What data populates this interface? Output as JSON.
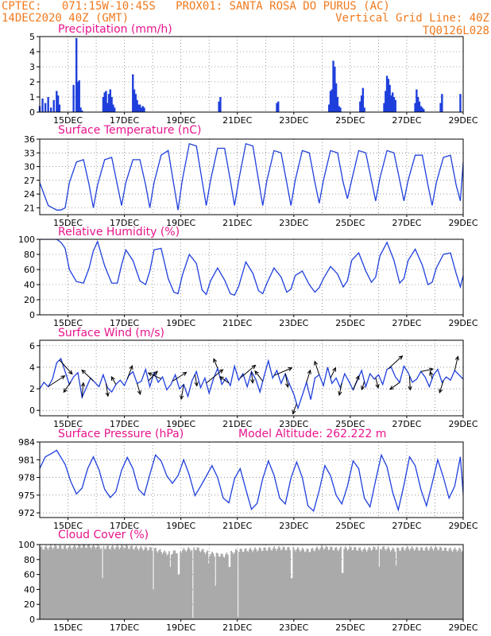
{
  "header": {
    "line1_left": "CPTEC:   071:15W-10:45S   PROX01: SANTA ROSA DO PURUS (AC)",
    "line2_left": "14DEC2020 40Z (GMT)",
    "line2_right": "Vertical Grid Line: 40Z",
    "line3_right": "TQ0126L028"
  },
  "colors": {
    "header": "#f07a1e",
    "title": "#e8148c",
    "series": "#1f3fdc",
    "cloud": "#aaaaaa",
    "arrow": "#000000",
    "grid": "#555555"
  },
  "chart_data": [
    {
      "type": "bar",
      "title": "Precipitation (mm/h)",
      "x_range": [
        14,
        29
      ],
      "x_ticks": [
        "15DEC",
        "17DEC",
        "19DEC",
        "21DEC",
        "23DEC",
        "25DEC",
        "27DEC",
        "29DEC"
      ],
      "ylim": [
        0,
        5
      ],
      "y_ticks": [
        "0",
        "1",
        "2",
        "3",
        "4",
        "5"
      ],
      "x": [
        14.0,
        14.1,
        14.2,
        14.3,
        14.4,
        14.5,
        14.6,
        14.65,
        14.7,
        15.2,
        15.3,
        15.35,
        15.4,
        15.45,
        15.5,
        16.25,
        16.3,
        16.35,
        16.4,
        16.45,
        16.5,
        16.55,
        16.6,
        16.65,
        17.3,
        17.35,
        17.4,
        17.45,
        17.5,
        17.55,
        17.6,
        17.65,
        17.7,
        20.35,
        20.4,
        22.4,
        22.45,
        24.25,
        24.3,
        24.35,
        24.4,
        24.45,
        24.5,
        24.55,
        24.6,
        24.65,
        25.35,
        25.4,
        25.45,
        25.5,
        26.2,
        26.25,
        26.3,
        26.35,
        26.4,
        26.45,
        26.5,
        26.55,
        26.6,
        27.3,
        27.35,
        27.4,
        27.45,
        27.5,
        27.55,
        27.6,
        28.2,
        28.25,
        28.9
      ],
      "values": [
        0.4,
        0.9,
        0.6,
        1.0,
        0.3,
        0.8,
        1.4,
        1.1,
        0.5,
        1.8,
        4.9,
        2.0,
        2.1,
        0.3,
        0.1,
        1.0,
        1.3,
        1.4,
        0.6,
        1.2,
        1.5,
        1.0,
        0.5,
        0.3,
        2.5,
        1.5,
        1.2,
        0.8,
        0.5,
        0.5,
        0.3,
        0.4,
        0.3,
        0.7,
        1.0,
        0.6,
        0.7,
        0.5,
        1.4,
        1.5,
        3.4,
        3.0,
        1.9,
        1.0,
        0.4,
        0.3,
        0.7,
        1.1,
        1.6,
        0.3,
        0.6,
        1.4,
        2.4,
        2.2,
        1.8,
        1.1,
        1.3,
        1.0,
        0.8,
        0.6,
        1.5,
        1.0,
        0.7,
        0.4,
        0.3,
        0.2,
        0.6,
        1.2,
        1.2
      ]
    },
    {
      "type": "line",
      "title": "Surface Temperature (nC)",
      "x_range": [
        14,
        29
      ],
      "x_ticks": [
        "15DEC",
        "17DEC",
        "19DEC",
        "21DEC",
        "23DEC",
        "25DEC",
        "27DEC",
        "29DEC"
      ],
      "ylim": [
        19.5,
        36
      ],
      "y_ticks": [
        "21",
        "24",
        "27",
        "30",
        "33",
        "36"
      ],
      "x": [
        14.0,
        14.3,
        14.6,
        14.75,
        14.9,
        15.05,
        15.3,
        15.55,
        15.75,
        15.9,
        16.05,
        16.3,
        16.55,
        16.75,
        16.9,
        17.05,
        17.3,
        17.55,
        17.75,
        17.9,
        18.05,
        18.3,
        18.55,
        18.75,
        18.9,
        19.05,
        19.3,
        19.55,
        19.75,
        19.9,
        20.05,
        20.3,
        20.55,
        20.75,
        20.9,
        21.05,
        21.3,
        21.55,
        21.75,
        21.9,
        22.05,
        22.3,
        22.55,
        22.75,
        22.9,
        23.05,
        23.3,
        23.55,
        23.75,
        23.9,
        24.05,
        24.3,
        24.55,
        24.75,
        24.9,
        25.05,
        25.3,
        25.55,
        25.75,
        25.9,
        26.05,
        26.3,
        26.55,
        26.75,
        26.9,
        27.05,
        27.3,
        27.55,
        27.75,
        27.9,
        28.05,
        28.3,
        28.55,
        28.75,
        28.9,
        29.0
      ],
      "values": [
        26.5,
        21.5,
        20.5,
        20.5,
        21.0,
        26.5,
        31.0,
        31.5,
        26.0,
        21.0,
        26.0,
        31.5,
        32.0,
        26.0,
        21.5,
        26.5,
        31.5,
        31.5,
        26.0,
        21.0,
        26.5,
        32.5,
        33.5,
        26.0,
        20.5,
        27.0,
        35.0,
        34.5,
        27.0,
        21.5,
        27.0,
        34.0,
        34.0,
        27.0,
        21.5,
        27.0,
        35.0,
        34.5,
        27.0,
        21.5,
        27.0,
        33.5,
        33.0,
        26.5,
        21.5,
        27.0,
        33.5,
        33.0,
        26.5,
        22.0,
        27.0,
        33.5,
        33.0,
        26.5,
        23.0,
        27.0,
        33.5,
        33.0,
        27.0,
        22.5,
        27.5,
        33.5,
        33.0,
        27.0,
        22.5,
        27.0,
        32.5,
        32.5,
        26.0,
        21.5,
        26.5,
        32.0,
        32.5,
        26.0,
        22.5,
        31.0
      ]
    },
    {
      "type": "line",
      "title": "Relative Humidity (%)",
      "x_range": [
        14,
        29
      ],
      "x_ticks": [
        "15DEC",
        "17DEC",
        "19DEC",
        "21DEC",
        "23DEC",
        "25DEC",
        "27DEC",
        "29DEC"
      ],
      "ylim": [
        0,
        100
      ],
      "y_ticks": [
        "0",
        "20",
        "40",
        "60",
        "80",
        "100"
      ],
      "x": [
        14.0,
        14.3,
        14.6,
        14.75,
        14.9,
        15.05,
        15.3,
        15.55,
        15.75,
        15.9,
        16.05,
        16.3,
        16.55,
        16.75,
        16.9,
        17.05,
        17.3,
        17.55,
        17.75,
        17.9,
        18.05,
        18.3,
        18.55,
        18.75,
        18.9,
        19.05,
        19.3,
        19.55,
        19.75,
        19.9,
        20.05,
        20.3,
        20.55,
        20.75,
        20.9,
        21.05,
        21.3,
        21.55,
        21.75,
        21.9,
        22.05,
        22.3,
        22.55,
        22.75,
        22.9,
        23.05,
        23.3,
        23.55,
        23.75,
        23.9,
        24.05,
        24.3,
        24.55,
        24.75,
        24.9,
        25.05,
        25.3,
        25.55,
        25.75,
        25.9,
        26.05,
        26.3,
        26.55,
        26.75,
        26.9,
        27.05,
        27.3,
        27.55,
        27.75,
        27.9,
        28.05,
        28.3,
        28.55,
        28.75,
        28.9,
        29.0
      ],
      "values": [
        100,
        100,
        100,
        96,
        88,
        60,
        44,
        42,
        62,
        85,
        97,
        65,
        42,
        42,
        66,
        86,
        72,
        45,
        40,
        58,
        86,
        88,
        48,
        30,
        28,
        52,
        80,
        68,
        33,
        27,
        45,
        62,
        46,
        28,
        26,
        38,
        70,
        55,
        32,
        28,
        42,
        62,
        50,
        30,
        34,
        52,
        58,
        40,
        30,
        36,
        48,
        64,
        54,
        37,
        45,
        72,
        82,
        58,
        43,
        50,
        78,
        96,
        72,
        42,
        48,
        72,
        87,
        66,
        40,
        43,
        62,
        80,
        82,
        55,
        37,
        52
      ]
    },
    {
      "type": "line",
      "title": "Surface Wind (m/s)",
      "x_range": [
        14,
        29
      ],
      "x_ticks": [
        "15DEC",
        "17DEC",
        "19DEC",
        "21DEC",
        "23DEC",
        "25DEC",
        "27DEC",
        "29DEC"
      ],
      "ylim": [
        -0.5,
        6.5
      ],
      "y_ticks": [
        "0",
        "2",
        "4",
        "6"
      ],
      "x": [
        14.0,
        14.15,
        14.3,
        14.45,
        14.6,
        14.75,
        14.9,
        15.05,
        15.2,
        15.35,
        15.5,
        15.65,
        15.8,
        15.95,
        16.1,
        16.25,
        16.4,
        16.55,
        16.7,
        16.85,
        17.0,
        17.15,
        17.3,
        17.45,
        17.6,
        17.75,
        17.9,
        18.05,
        18.2,
        18.35,
        18.5,
        18.65,
        18.8,
        18.95,
        19.1,
        19.25,
        19.4,
        19.55,
        19.7,
        19.85,
        20.0,
        20.15,
        20.3,
        20.45,
        20.6,
        20.75,
        20.9,
        21.05,
        21.2,
        21.35,
        21.5,
        21.65,
        21.8,
        21.95,
        22.1,
        22.25,
        22.4,
        22.55,
        22.7,
        22.85,
        23.0,
        23.15,
        23.3,
        23.45,
        23.6,
        23.75,
        23.9,
        24.05,
        24.2,
        24.35,
        24.5,
        24.65,
        24.8,
        24.95,
        25.1,
        25.25,
        25.4,
        25.55,
        25.7,
        25.85,
        26.0,
        26.15,
        26.3,
        26.45,
        26.6,
        26.75,
        26.9,
        27.05,
        27.2,
        27.35,
        27.5,
        27.65,
        27.8,
        27.95,
        28.1,
        28.25,
        28.4,
        28.55,
        28.7,
        28.85,
        29.0
      ],
      "values": [
        2.0,
        2.6,
        2.2,
        2.9,
        4.4,
        4.8,
        3.6,
        2.4,
        3.1,
        3.5,
        1.2,
        2.1,
        3.0,
        2.6,
        2.2,
        3.3,
        2.1,
        1.7,
        2.4,
        2.8,
        2.3,
        3.2,
        3.6,
        2.5,
        2.7,
        3.8,
        2.2,
        3.5,
        2.6,
        3.1,
        1.9,
        2.4,
        3.3,
        2.0,
        2.4,
        1.3,
        2.8,
        3.6,
        2.1,
        3.0,
        1.6,
        2.9,
        3.9,
        2.4,
        3.0,
        2.3,
        4.1,
        2.8,
        3.4,
        2.2,
        3.6,
        2.9,
        1.7,
        3.2,
        4.6,
        3.0,
        3.7,
        2.5,
        3.4,
        2.4,
        1.5,
        0.2,
        1.4,
        2.6,
        1.0,
        3.0,
        3.3,
        2.3,
        4.0,
        2.5,
        3.0,
        2.1,
        3.4,
        2.7,
        1.9,
        2.8,
        3.7,
        2.2,
        3.4,
        2.9,
        3.3,
        2.4,
        3.8,
        4.0,
        3.1,
        2.6,
        4.1,
        3.5,
        2.6,
        2.9,
        3.6,
        3.1,
        2.2,
        3.3,
        3.8,
        2.6,
        3.1,
        2.8,
        3.7,
        3.3,
        2.9
      ],
      "arrows": {
        "x": [
          14.3,
          14.7,
          15.1,
          15.5,
          15.9,
          16.35,
          16.7,
          17.1,
          17.45,
          17.85,
          18.3,
          18.7,
          19.1,
          19.5,
          19.9,
          20.3,
          20.7,
          21.1,
          21.5,
          21.9,
          22.3,
          22.7,
          23.1,
          23.45,
          23.9,
          24.3,
          24.7,
          25.1,
          25.5,
          25.9,
          26.35,
          26.75,
          27.1,
          27.5,
          27.9,
          28.3,
          28.7
        ],
        "u": [
          2.6,
          2.0,
          -1.1,
          0.2,
          -1.8,
          0.3,
          -0.7,
          0.8,
          0.5,
          1.4,
          -2.0,
          2.2,
          -0.4,
          0.3,
          2.6,
          -0.6,
          -1.4,
          2.4,
          0.2,
          -1.2,
          2.8,
          0.4,
          -0.6,
          0.6,
          -0.7,
          0.8,
          -0.4,
          0.9,
          -0.4,
          0.4,
          2.2,
          -1.5,
          0.1,
          1.9,
          -0.3,
          -0.6,
          0.5
        ],
        "v": [
          1.7,
          -2.2,
          -1.6,
          2.3,
          1.7,
          -2.0,
          1.2,
          2.1,
          -1.7,
          1.5,
          0.9,
          1.4,
          -2.3,
          -1.8,
          2.1,
          1.5,
          1.0,
          2.0,
          -1.8,
          1.6,
          1.2,
          -2.1,
          -1.6,
          1.9,
          2.1,
          1.6,
          -1.9,
          2.2,
          -1.3,
          -1.6,
          2.0,
          -1.1,
          -2.2,
          0.4,
          1.1,
          -1.9,
          2.2
        ]
      }
    },
    {
      "type": "line",
      "title": "Surface Pressure (hPa)",
      "annotation": "Model Altitude: 262.222 m",
      "x_range": [
        14,
        29
      ],
      "x_ticks": [
        "15DEC",
        "17DEC",
        "19DEC",
        "21DEC",
        "23DEC",
        "25DEC",
        "27DEC",
        "29DEC"
      ],
      "ylim": [
        971.2,
        984
      ],
      "y_ticks": [
        "972",
        "975",
        "978",
        "981",
        "984"
      ],
      "x": [
        14.0,
        14.2,
        14.4,
        14.6,
        14.9,
        15.1,
        15.3,
        15.5,
        15.7,
        15.9,
        16.1,
        16.3,
        16.5,
        16.7,
        16.9,
        17.1,
        17.3,
        17.5,
        17.7,
        17.9,
        18.1,
        18.3,
        18.5,
        18.7,
        18.9,
        19.1,
        19.3,
        19.5,
        19.7,
        19.9,
        20.1,
        20.3,
        20.5,
        20.7,
        20.9,
        21.1,
        21.3,
        21.5,
        21.7,
        21.9,
        22.1,
        22.3,
        22.5,
        22.7,
        22.9,
        23.1,
        23.3,
        23.5,
        23.7,
        23.9,
        24.1,
        24.3,
        24.5,
        24.7,
        24.9,
        25.1,
        25.3,
        25.5,
        25.7,
        25.9,
        26.1,
        26.3,
        26.5,
        26.7,
        26.9,
        27.1,
        27.3,
        27.5,
        27.7,
        27.9,
        28.1,
        28.3,
        28.5,
        28.7,
        28.9,
        29.0
      ],
      "values": [
        979.5,
        981.5,
        982.0,
        982.6,
        980.2,
        977.3,
        975.2,
        976.2,
        979.5,
        981.5,
        979.3,
        976.0,
        974.6,
        975.6,
        979.2,
        981.4,
        979.5,
        976.0,
        975.0,
        978.5,
        981.8,
        980.8,
        978.3,
        977.0,
        978.3,
        981.0,
        978.4,
        974.9,
        976.5,
        978.2,
        980.0,
        978.0,
        974.5,
        973.7,
        977.8,
        979.5,
        976.0,
        972.6,
        973.6,
        977.8,
        980.8,
        978.4,
        974.5,
        973.5,
        977.9,
        980.6,
        978.0,
        973.2,
        972.3,
        975.8,
        980.0,
        978.3,
        975.0,
        973.5,
        976.5,
        980.8,
        979.5,
        974.5,
        973.0,
        977.5,
        981.8,
        979.8,
        975.5,
        972.5,
        976.7,
        981.5,
        980.0,
        976.0,
        973.2,
        977.0,
        981.0,
        978.0,
        974.5,
        976.5,
        981.5,
        975.2
      ]
    },
    {
      "type": "bar",
      "title": "Cloud Cover (%)",
      "x_range": [
        14,
        29
      ],
      "x_ticks": [
        "15DEC",
        "17DEC",
        "19DEC",
        "21DEC",
        "23DEC",
        "25DEC",
        "27DEC",
        "29DEC"
      ],
      "ylim": [
        0,
        100
      ],
      "y_ticks": [
        "0",
        "20",
        "40",
        "60",
        "80",
        "100"
      ],
      "x": [
        14.0,
        14.5,
        15.0,
        15.5,
        16.0,
        16.5,
        17.0,
        17.5,
        18.0,
        18.5,
        19.0,
        19.5,
        20.0,
        20.5,
        21.0,
        21.5,
        22.0,
        22.5,
        23.0,
        23.5,
        24.0,
        24.5,
        25.0,
        25.5,
        26.0,
        26.5,
        27.0,
        27.5,
        28.0,
        28.5
      ],
      "values": [
        95,
        97,
        96,
        98,
        97,
        96,
        97,
        95,
        94,
        88,
        92,
        95,
        88,
        85,
        92,
        93,
        94,
        95,
        94,
        92,
        96,
        94,
        95,
        93,
        96,
        93,
        95,
        94,
        95,
        93
      ],
      "dips": {
        "x": [
          16.2,
          18.0,
          18.6,
          18.9,
          19.4,
          19.95,
          20.2,
          20.7,
          21.0,
          22.9,
          24.7,
          26.0,
          26.6
        ],
        "values": [
          55,
          40,
          70,
          60,
          2,
          75,
          45,
          70,
          3,
          55,
          62,
          70,
          72
        ]
      }
    }
  ]
}
